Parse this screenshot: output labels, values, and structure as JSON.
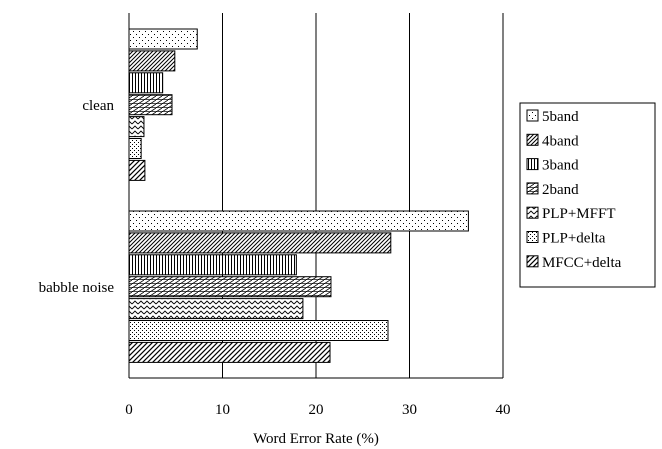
{
  "chart_data": {
    "type": "bar",
    "orientation": "horizontal",
    "categories": [
      "clean",
      "babble noise"
    ],
    "series": [
      {
        "name": "5band",
        "values": [
          7.3,
          36.3
        ],
        "pattern": "dots-sparse"
      },
      {
        "name": "4band",
        "values": [
          4.9,
          28.0
        ],
        "pattern": "diag-dense"
      },
      {
        "name": "3band",
        "values": [
          3.6,
          17.9
        ],
        "pattern": "vertical"
      },
      {
        "name": "2band",
        "values": [
          4.6,
          21.6
        ],
        "pattern": "diag-horizontal"
      },
      {
        "name": "PLP+MFFT",
        "values": [
          1.6,
          18.6
        ],
        "pattern": "zigzag"
      },
      {
        "name": "PLP+delta",
        "values": [
          1.3,
          27.7
        ],
        "pattern": "dots-dense"
      },
      {
        "name": "MFCC+delta",
        "values": [
          1.7,
          21.5
        ],
        "pattern": "diag-wide"
      }
    ],
    "xlabel": "Word Error Rate (%)",
    "xlim": [
      0,
      40
    ],
    "xticks": [
      "0",
      "10",
      "20",
      "30",
      "40"
    ],
    "grid": "vertical",
    "legend_position": "right"
  }
}
